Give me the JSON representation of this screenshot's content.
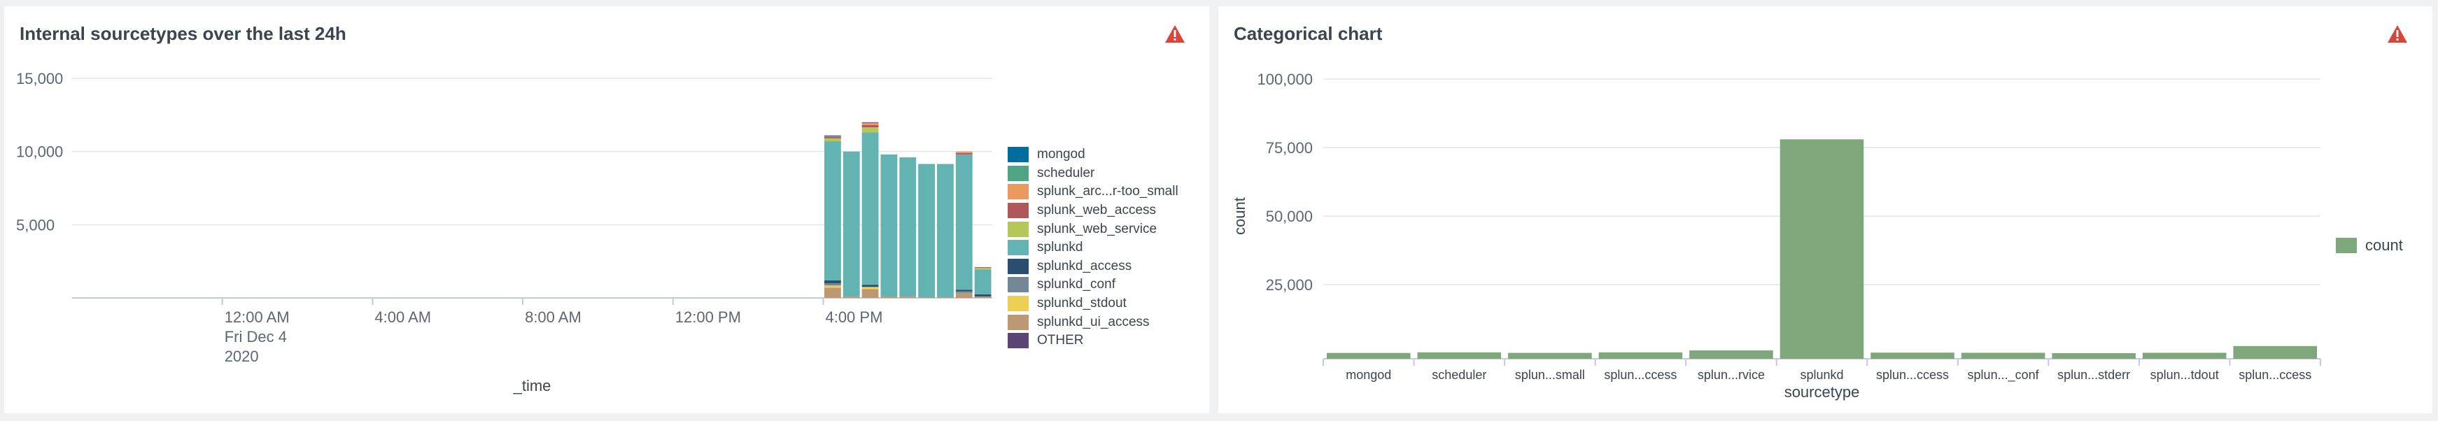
{
  "colors": {
    "warning": "#d6473b",
    "grid": "#e1e6eb",
    "axis": "#c3cbd4",
    "bar": "#7ea77b"
  },
  "left_panel": {
    "title": "Internal sourcetypes over the last 24h",
    "warning_icon": "warning-triangle-icon",
    "legend": [
      {
        "label": "mongod",
        "color": "#006d9c"
      },
      {
        "label": "scheduler",
        "color": "#4fa484"
      },
      {
        "label": "splunk_arc...r-too_small",
        "color": "#ec9960"
      },
      {
        "label": "splunk_web_access",
        "color": "#af575a"
      },
      {
        "label": "splunk_web_service",
        "color": "#b6c75a"
      },
      {
        "label": "splunkd",
        "color": "#62b3b2"
      },
      {
        "label": "splunkd_access",
        "color": "#294e70"
      },
      {
        "label": "splunkd_conf",
        "color": "#738795"
      },
      {
        "label": "splunkd_stdout",
        "color": "#edd051"
      },
      {
        "label": "splunkd_ui_access",
        "color": "#bd9872"
      },
      {
        "label": "OTHER",
        "color": "#5a4575"
      }
    ]
  },
  "right_panel": {
    "title": "Categorical chart",
    "warning_icon": "warning-triangle-icon",
    "legend": [
      {
        "label": "count",
        "color": "#7ea77b"
      }
    ]
  },
  "chart_data": [
    {
      "type": "bar",
      "stacked": true,
      "title": "Internal sourcetypes over the last 24h",
      "xlabel": "_time",
      "ylabel": "",
      "ylim": [
        0,
        15000
      ],
      "yticks": [
        "15,000",
        "10,000",
        "5,000"
      ],
      "yticks_values": [
        15000,
        10000,
        5000
      ],
      "xticks": [
        {
          "lines": [
            "12:00 AM",
            "Fri Dec 4",
            "2020"
          ],
          "slot": 8
        },
        {
          "lines": [
            "4:00 AM"
          ],
          "slot": 16
        },
        {
          "lines": [
            "8:00 AM"
          ],
          "slot": 24
        },
        {
          "lines": [
            "12:00 PM"
          ],
          "slot": 32
        },
        {
          "lines": [
            "4:00 PM"
          ],
          "slot": 40
        }
      ],
      "slot_count": 49,
      "legend_position": "right",
      "grid": true,
      "bars": [
        {
          "slot": 40,
          "segments": {
            "splunkd_ui_access": 700,
            "splunkd_stdout": 150,
            "splunkd_conf": 150,
            "splunkd_access": 200,
            "splunkd": 9500,
            "splunk_web_service": 200,
            "splunk_web_access": 100,
            "scheduler": 50,
            "OTHER": 50
          }
        },
        {
          "slot": 41,
          "segments": {
            "splunkd_ui_access": 100,
            "splunkd": 9900
          }
        },
        {
          "slot": 42,
          "segments": {
            "splunkd_ui_access": 600,
            "splunkd_stdout": 150,
            "splunkd_access": 150,
            "splunkd": 10400,
            "splunk_web_service": 350,
            "splunk_web_access": 150,
            "splunk_arc...r-too_small": 150,
            "OTHER": 50
          }
        },
        {
          "slot": 43,
          "segments": {
            "splunkd_ui_access": 100,
            "splunkd": 9700
          }
        },
        {
          "slot": 44,
          "segments": {
            "splunkd_ui_access": 100,
            "splunkd": 9500
          }
        },
        {
          "slot": 45,
          "segments": {
            "splunkd_ui_access": 50,
            "splunkd": 9100
          }
        },
        {
          "slot": 46,
          "segments": {
            "splunkd_ui_access": 50,
            "splunkd": 9100
          }
        },
        {
          "slot": 47,
          "segments": {
            "splunkd_ui_access": 350,
            "splunkd_conf": 100,
            "splunkd_access": 100,
            "splunkd": 9250,
            "splunk_web_access": 100,
            "splunk_arc...r-too_small": 100
          }
        },
        {
          "slot": 48,
          "segments": {
            "splunkd_ui_access": 100,
            "splunkd_access": 150,
            "splunkd": 1700,
            "splunk_web_service": 100,
            "splunk_web_access": 50
          }
        }
      ]
    },
    {
      "type": "bar",
      "title": "Categorical chart",
      "xlabel": "sourcetype",
      "ylabel": "count",
      "ylim": [
        0,
        100000
      ],
      "yticks": [
        "100,000",
        "75,000",
        "50,000",
        "25,000"
      ],
      "yticks_values": [
        100000,
        75000,
        50000,
        25000
      ],
      "categories": [
        "mongod",
        "scheduler",
        "splun...small",
        "splun...ccess",
        "splun...rvice",
        "splunkd",
        "splun...ccess",
        "splun..._conf",
        "splun...stderr",
        "splun...tdout",
        "splun...ccess"
      ],
      "series": [
        {
          "name": "count",
          "values": [
            80,
            300,
            100,
            300,
            1000,
            78000,
            200,
            150,
            20,
            150,
            2600
          ]
        }
      ],
      "legend_position": "right",
      "grid": true
    }
  ]
}
